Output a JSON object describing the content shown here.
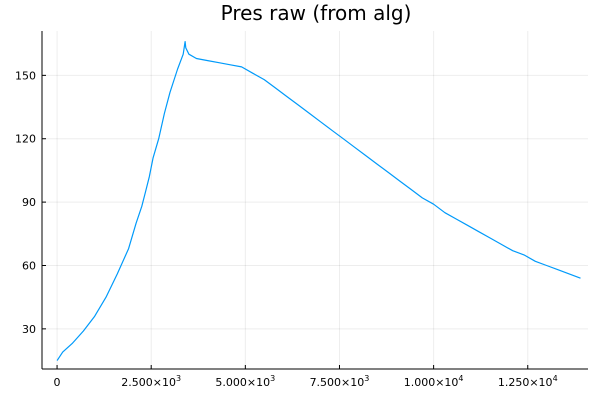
{
  "chart_data": {
    "type": "line",
    "title": "Pres raw (from alg)",
    "xlabel": "",
    "ylabel": "",
    "xlim": [
      -400,
      14100
    ],
    "ylim": [
      11,
      171
    ],
    "grid": true,
    "legend": "none",
    "x_ticks": [
      {
        "value": 0,
        "mantissa": "0",
        "exponent": ""
      },
      {
        "value": 2500,
        "mantissa": "2.500×10",
        "exponent": "3"
      },
      {
        "value": 5000,
        "mantissa": "5.000×10",
        "exponent": "3"
      },
      {
        "value": 7500,
        "mantissa": "7.500×10",
        "exponent": "3"
      },
      {
        "value": 10000,
        "mantissa": "1.000×10",
        "exponent": "4"
      },
      {
        "value": 12500,
        "mantissa": "1.250×10",
        "exponent": "4"
      }
    ],
    "y_ticks": [
      {
        "value": 30,
        "label": "30"
      },
      {
        "value": 60,
        "label": "60"
      },
      {
        "value": 90,
        "label": "90"
      },
      {
        "value": 120,
        "label": "120"
      },
      {
        "value": 150,
        "label": "150"
      }
    ],
    "series": [
      {
        "color": "#009AFA",
        "x": [
          0,
          150,
          400,
          700,
          1000,
          1300,
          1600,
          1900,
          2100,
          2250,
          2350,
          2450,
          2550,
          2700,
          2850,
          3000,
          3200,
          3350,
          3400,
          3420,
          3500,
          3700,
          4000,
          4300,
          4600,
          4900,
          5200,
          5500,
          5800,
          6100,
          6400,
          6700,
          7000,
          7300,
          7600,
          7900,
          8200,
          8500,
          8800,
          9100,
          9400,
          9700,
          10000,
          10300,
          10600,
          10900,
          11200,
          11500,
          11800,
          12100,
          12400,
          12700,
          13000,
          13300,
          13600,
          13900
        ],
        "y": [
          15,
          19,
          23,
          29,
          36,
          45,
          56,
          68,
          80,
          88,
          95,
          102,
          111,
          120,
          132,
          142,
          153,
          160,
          166,
          163,
          160,
          158,
          157,
          156,
          155,
          154,
          151,
          148,
          144,
          140,
          136,
          132,
          128,
          124,
          120,
          116,
          112,
          108,
          104,
          100,
          96,
          92,
          89,
          85,
          82,
          79,
          76,
          73,
          70,
          67,
          65,
          62,
          60,
          58,
          56,
          54
        ]
      }
    ]
  }
}
